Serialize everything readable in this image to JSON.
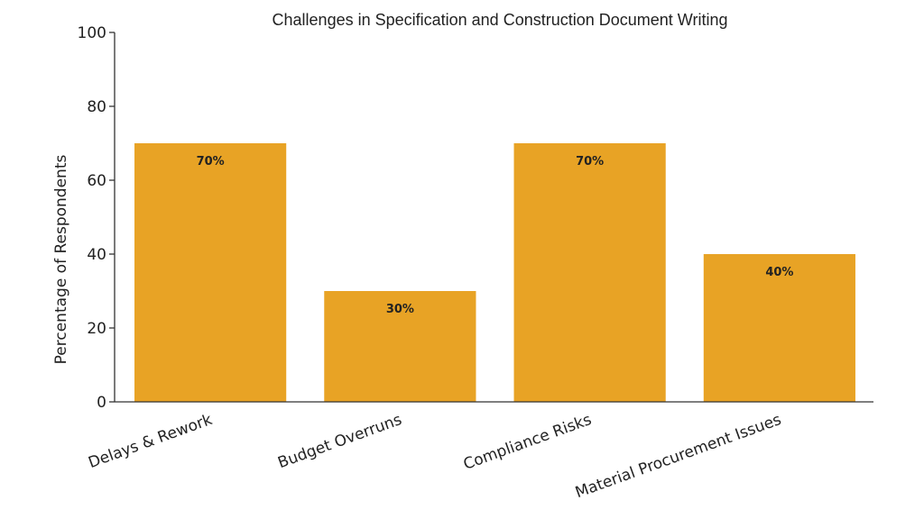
{
  "chart_data": {
    "type": "bar",
    "title": "Challenges in Specification and Construction Document Writing",
    "xlabel": "",
    "ylabel": "Percentage of Respondents",
    "categories": [
      "Delays & Rework",
      "Budget Overruns",
      "Compliance Risks",
      "Material Procurement Issues"
    ],
    "values": [
      70,
      30,
      70,
      40
    ],
    "data_labels": [
      "70%",
      "30%",
      "70%",
      "40%"
    ],
    "ylim": [
      0,
      100
    ],
    "yticks": [
      0,
      20,
      40,
      60,
      80,
      100
    ],
    "grid": false,
    "bar_color": "#E8A325"
  }
}
